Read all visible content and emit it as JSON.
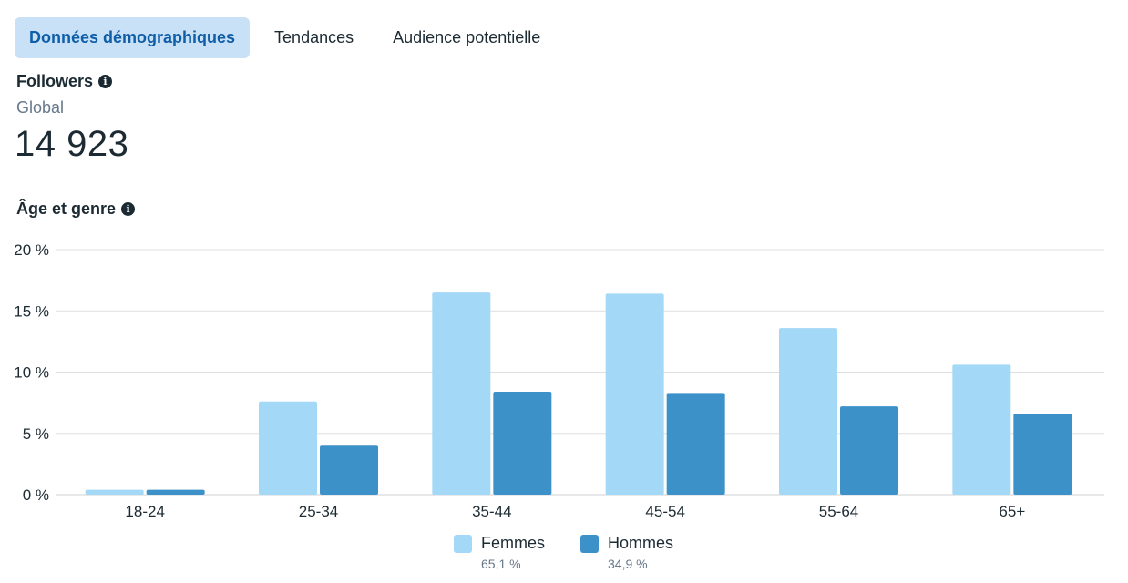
{
  "tabs": [
    {
      "label": "Données démographiques",
      "active": true
    },
    {
      "label": "Tendances",
      "active": false
    },
    {
      "label": "Audience potentielle",
      "active": false
    }
  ],
  "followers": {
    "title": "Followers",
    "scope": "Global",
    "count": "14 923"
  },
  "age_gender": {
    "title": "Âge et genre"
  },
  "colors": {
    "femmes": "#a3d8f6",
    "hommes": "#3d91c9",
    "grid": "#dddfe2",
    "accent": "#0f5ea8"
  },
  "legend": {
    "femmes": {
      "name": "Femmes",
      "pct": "65,1 %"
    },
    "hommes": {
      "name": "Hommes",
      "pct": "34,9 %"
    }
  },
  "chart_data": {
    "type": "bar",
    "title": "Âge et genre",
    "xlabel": "",
    "ylabel": "",
    "ylim": [
      0,
      20
    ],
    "yticks": [
      0,
      5,
      10,
      15,
      20
    ],
    "ytick_labels": [
      "0 %",
      "5 %",
      "10 %",
      "15 %",
      "20 %"
    ],
    "grid": true,
    "legend_position": "bottom-center",
    "categories": [
      "18-24",
      "25-34",
      "35-44",
      "45-54",
      "55-64",
      "65+"
    ],
    "series": [
      {
        "name": "Femmes",
        "values": [
          0.4,
          7.6,
          16.5,
          16.4,
          13.6,
          10.6
        ]
      },
      {
        "name": "Hommes",
        "values": [
          0.4,
          4.0,
          8.4,
          8.3,
          7.2,
          6.6
        ]
      }
    ]
  }
}
